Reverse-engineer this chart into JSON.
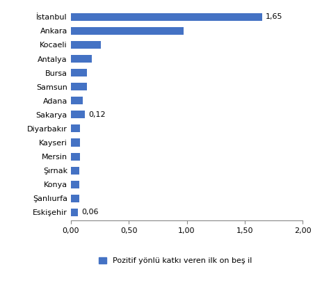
{
  "categories": [
    "İstanbul",
    "Ankara",
    "Kocaeli",
    "Antalya",
    "Bursa",
    "Samsun",
    "Adana",
    "Sakarya",
    "Diyarbakır",
    "Kayseri",
    "Mersin",
    "Şırnak",
    "Konya",
    "Şanlıurfa",
    "Eskişehir"
  ],
  "values": [
    1.65,
    0.97,
    0.26,
    0.18,
    0.14,
    0.14,
    0.1,
    0.12,
    0.08,
    0.08,
    0.08,
    0.07,
    0.07,
    0.07,
    0.06
  ],
  "bar_color": "#4472C4",
  "annotations": {
    "Sakarya": "0,12",
    "İstanbul": "1,65",
    "Eskişehir": "0,06"
  },
  "pct_label": "(%)",
  "xlim": [
    0,
    2.0
  ],
  "xticks": [
    0.0,
    0.5,
    1.0,
    1.5,
    2.0
  ],
  "xtick_labels": [
    "0,00",
    "0,50",
    "1,00",
    "1,50",
    "2,00"
  ],
  "legend_label": "Pozitif yönlü katkı veren ilk on beş il",
  "background_color": "#ffffff",
  "bar_height": 0.55,
  "label_fontsize": 8,
  "tick_fontsize": 8,
  "legend_fontsize": 8
}
